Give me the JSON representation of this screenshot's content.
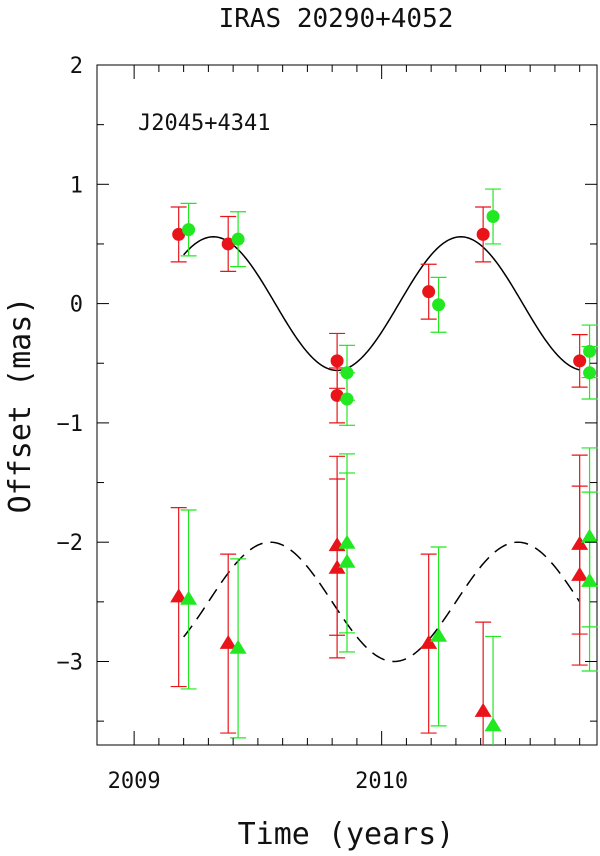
{
  "chart_data": {
    "type": "scatter",
    "title": "IRAS 20290+4052",
    "xlabel": "Time (years)",
    "ylabel": "Offset (mas)",
    "annotation": "J2045+4341",
    "xlim": [
      2008.85,
      2010.87
    ],
    "ylim": [
      -3.7,
      2.0
    ],
    "x_ticks": [
      2009,
      2010
    ],
    "y_ticks": [
      -3,
      -2,
      -1,
      0,
      1,
      2
    ],
    "colors": {
      "red": "#e8141a",
      "green": "#22e822",
      "line": "#000000"
    },
    "series": [
      {
        "name": "upper-red-circles",
        "marker": "circle",
        "color": "red",
        "points": [
          {
            "x": 2009.18,
            "y": 0.58,
            "err": 0.23
          },
          {
            "x": 2009.38,
            "y": 0.5,
            "err": 0.23
          },
          {
            "x": 2009.82,
            "y": -0.48,
            "err": 0.23
          },
          {
            "x": 2009.82,
            "y": -0.77,
            "err": 0.23
          },
          {
            "x": 2010.19,
            "y": 0.1,
            "err": 0.23
          },
          {
            "x": 2010.41,
            "y": 0.58,
            "err": 0.23
          },
          {
            "x": 2010.8,
            "y": -0.48,
            "err": 0.22
          }
        ]
      },
      {
        "name": "upper-green-circles",
        "marker": "circle",
        "color": "green",
        "points": [
          {
            "x": 2009.22,
            "y": 0.62,
            "err": 0.22
          },
          {
            "x": 2009.42,
            "y": 0.54,
            "err": 0.23
          },
          {
            "x": 2009.86,
            "y": -0.58,
            "err": 0.23
          },
          {
            "x": 2009.86,
            "y": -0.8,
            "err": 0.22
          },
          {
            "x": 2010.23,
            "y": -0.01,
            "err": 0.23
          },
          {
            "x": 2010.45,
            "y": 0.73,
            "err": 0.23
          },
          {
            "x": 2010.84,
            "y": -0.4,
            "err": 0.22
          },
          {
            "x": 2010.84,
            "y": -0.58,
            "err": 0.22
          }
        ]
      },
      {
        "name": "lower-red-triangles",
        "marker": "triangle",
        "color": "red",
        "points": [
          {
            "x": 2009.18,
            "y": -2.46,
            "err": 0.75
          },
          {
            "x": 2009.38,
            "y": -2.85,
            "err": 0.75
          },
          {
            "x": 2009.82,
            "y": -2.03,
            "err": 0.75
          },
          {
            "x": 2009.82,
            "y": -2.22,
            "err": 0.75
          },
          {
            "x": 2010.19,
            "y": -2.85,
            "err": 0.75
          },
          {
            "x": 2010.41,
            "y": -3.42,
            "err": 0.75
          },
          {
            "x": 2010.8,
            "y": -2.02,
            "err": 0.75
          },
          {
            "x": 2010.8,
            "y": -2.28,
            "err": 0.75
          }
        ]
      },
      {
        "name": "lower-green-triangles",
        "marker": "triangle",
        "color": "green",
        "points": [
          {
            "x": 2009.22,
            "y": -2.48,
            "err": 0.75
          },
          {
            "x": 2009.42,
            "y": -2.89,
            "err": 0.75
          },
          {
            "x": 2009.86,
            "y": -2.01,
            "err": 0.75
          },
          {
            "x": 2009.86,
            "y": -2.17,
            "err": 0.75
          },
          {
            "x": 2010.23,
            "y": -2.79,
            "err": 0.75
          },
          {
            "x": 2010.45,
            "y": -3.54,
            "err": 0.75
          },
          {
            "x": 2010.84,
            "y": -1.96,
            "err": 0.75
          },
          {
            "x": 2010.84,
            "y": -2.33,
            "err": 0.75
          }
        ]
      }
    ],
    "model_curves": [
      {
        "name": "upper-solid-curve",
        "style": "solid",
        "offset": 0.0,
        "amplitude": 0.56,
        "period": 1.0,
        "phase_peak": 2009.32,
        "x_range": [
          2009.2,
          2010.8
        ]
      },
      {
        "name": "lower-dashed-curve",
        "style": "dashed",
        "offset": -2.5,
        "amplitude": 0.5,
        "period": 1.0,
        "phase_peak": 2009.55,
        "x_range": [
          2009.2,
          2010.8
        ]
      }
    ]
  }
}
